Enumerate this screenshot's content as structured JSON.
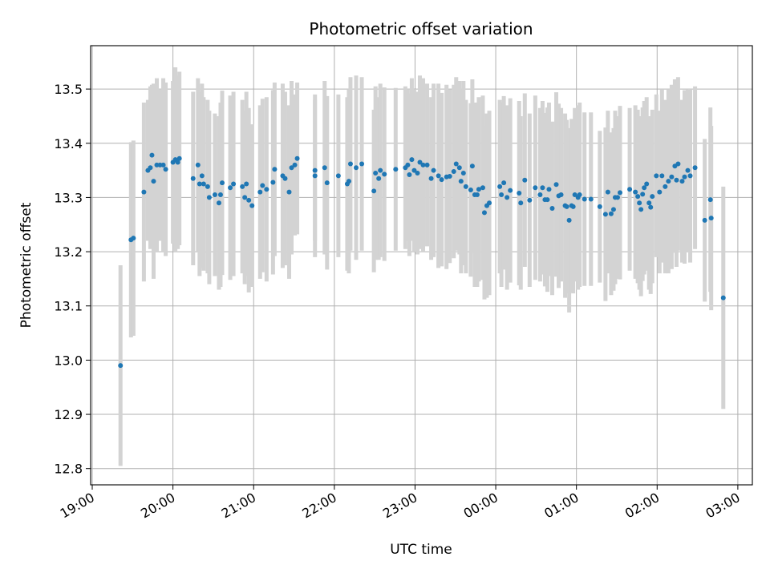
{
  "chart_data": {
    "type": "scatter",
    "title": "Photometric offset variation",
    "xlabel": "UTC time",
    "ylabel": "Photometric offset",
    "x_axis": "time (hours since 19:00 UTC reference; ticks wrap past midnight)",
    "xlim_hours": [
      -0.02,
      8.18
    ],
    "ylim": [
      12.77,
      13.58
    ],
    "x_ticks": [
      {
        "h": 0,
        "label": "19:00"
      },
      {
        "h": 1,
        "label": "20:00"
      },
      {
        "h": 2,
        "label": "21:00"
      },
      {
        "h": 3,
        "label": "22:00"
      },
      {
        "h": 4,
        "label": "23:00"
      },
      {
        "h": 5,
        "label": "00:00"
      },
      {
        "h": 6,
        "label": "01:00"
      },
      {
        "h": 7,
        "label": "02:00"
      },
      {
        "h": 8,
        "label": "03:00"
      }
    ],
    "y_ticks": [
      {
        "v": 12.8,
        "label": "12.8"
      },
      {
        "v": 12.9,
        "label": "12.9"
      },
      {
        "v": 13.0,
        "label": "13.0"
      },
      {
        "v": 13.1,
        "label": "13.1"
      },
      {
        "v": 13.2,
        "label": "13.2"
      },
      {
        "v": 13.3,
        "label": "13.3"
      },
      {
        "v": 13.4,
        "label": "13.4"
      },
      {
        "v": 13.5,
        "label": "13.5"
      }
    ],
    "grid": true,
    "marker_color": "#1f77b4",
    "errorbar_color": "#d3d3d3",
    "points": [
      [
        0.35,
        12.99,
        0.185
      ],
      [
        0.48,
        13.222,
        0.18
      ],
      [
        0.51,
        13.225,
        0.18
      ],
      [
        0.64,
        13.31,
        0.165
      ],
      [
        0.69,
        13.35,
        0.13
      ],
      [
        0.72,
        13.355,
        0.15
      ],
      [
        0.74,
        13.378,
        0.13
      ],
      [
        0.76,
        13.33,
        0.18
      ],
      [
        0.8,
        13.36,
        0.16
      ],
      [
        0.84,
        13.36,
        0.14
      ],
      [
        0.88,
        13.36,
        0.16
      ],
      [
        0.91,
        13.352,
        0.16
      ],
      [
        1.0,
        13.365,
        0.15
      ],
      [
        1.03,
        13.37,
        0.17
      ],
      [
        1.06,
        13.365,
        0.16
      ],
      [
        1.08,
        13.372,
        0.16
      ],
      [
        1.25,
        13.335,
        0.16
      ],
      [
        1.31,
        13.36,
        0.16
      ],
      [
        1.33,
        13.325,
        0.17
      ],
      [
        1.36,
        13.34,
        0.17
      ],
      [
        1.38,
        13.325,
        0.16
      ],
      [
        1.43,
        13.32,
        0.16
      ],
      [
        1.45,
        13.3,
        0.16
      ],
      [
        1.52,
        13.305,
        0.15
      ],
      [
        1.57,
        13.29,
        0.16
      ],
      [
        1.59,
        13.305,
        0.17
      ],
      [
        1.61,
        13.327,
        0.17
      ],
      [
        1.71,
        13.318,
        0.17
      ],
      [
        1.75,
        13.325,
        0.17
      ],
      [
        1.86,
        13.32,
        0.16
      ],
      [
        1.89,
        13.3,
        0.16
      ],
      [
        1.91,
        13.325,
        0.17
      ],
      [
        1.94,
        13.295,
        0.17
      ],
      [
        1.98,
        13.285,
        0.15
      ],
      [
        2.08,
        13.31,
        0.16
      ],
      [
        2.11,
        13.322,
        0.16
      ],
      [
        2.16,
        13.315,
        0.17
      ],
      [
        2.24,
        13.328,
        0.17
      ],
      [
        2.26,
        13.352,
        0.16
      ],
      [
        2.36,
        13.34,
        0.17
      ],
      [
        2.39,
        13.335,
        0.16
      ],
      [
        2.44,
        13.31,
        0.16
      ],
      [
        2.47,
        13.355,
        0.16
      ],
      [
        2.51,
        13.36,
        0.13
      ],
      [
        2.54,
        13.372,
        0.14
      ],
      [
        2.76,
        13.35,
        0.13
      ],
      [
        2.76,
        13.34,
        0.15
      ],
      [
        2.88,
        13.355,
        0.16
      ],
      [
        2.91,
        13.327,
        0.16
      ],
      [
        3.05,
        13.34,
        0.15
      ],
      [
        3.16,
        13.325,
        0.16
      ],
      [
        3.18,
        13.33,
        0.17
      ],
      [
        3.2,
        13.362,
        0.16
      ],
      [
        3.27,
        13.355,
        0.17
      ],
      [
        3.34,
        13.362,
        0.16
      ],
      [
        3.49,
        13.312,
        0.15
      ],
      [
        3.51,
        13.345,
        0.16
      ],
      [
        3.55,
        13.335,
        0.15
      ],
      [
        3.57,
        13.35,
        0.16
      ],
      [
        3.62,
        13.343,
        0.16
      ],
      [
        3.76,
        13.352,
        0.15
      ],
      [
        3.88,
        13.355,
        0.15
      ],
      [
        3.91,
        13.36,
        0.14
      ],
      [
        3.93,
        13.342,
        0.15
      ],
      [
        3.96,
        13.37,
        0.15
      ],
      [
        3.99,
        13.35,
        0.15
      ],
      [
        4.03,
        13.345,
        0.15
      ],
      [
        4.06,
        13.365,
        0.16
      ],
      [
        4.1,
        13.36,
        0.16
      ],
      [
        4.15,
        13.36,
        0.15
      ],
      [
        4.2,
        13.335,
        0.15
      ],
      [
        4.23,
        13.35,
        0.16
      ],
      [
        4.29,
        13.34,
        0.17
      ],
      [
        4.33,
        13.333,
        0.16
      ],
      [
        4.39,
        13.338,
        0.17
      ],
      [
        4.43,
        13.339,
        0.16
      ],
      [
        4.48,
        13.348,
        0.16
      ],
      [
        4.51,
        13.362,
        0.16
      ],
      [
        4.55,
        13.355,
        0.16
      ],
      [
        4.57,
        13.33,
        0.17
      ],
      [
        4.6,
        13.345,
        0.17
      ],
      [
        4.63,
        13.32,
        0.16
      ],
      [
        4.69,
        13.314,
        0.16
      ],
      [
        4.71,
        13.358,
        0.16
      ],
      [
        4.74,
        13.305,
        0.17
      ],
      [
        4.77,
        13.305,
        0.17
      ],
      [
        4.79,
        13.315,
        0.17
      ],
      [
        4.84,
        13.318,
        0.17
      ],
      [
        4.86,
        13.272,
        0.16
      ],
      [
        4.89,
        13.285,
        0.17
      ],
      [
        4.92,
        13.29,
        0.17
      ],
      [
        5.05,
        13.32,
        0.16
      ],
      [
        5.07,
        13.305,
        0.17
      ],
      [
        5.1,
        13.327,
        0.16
      ],
      [
        5.14,
        13.3,
        0.17
      ],
      [
        5.18,
        13.313,
        0.17
      ],
      [
        5.29,
        13.308,
        0.17
      ],
      [
        5.31,
        13.29,
        0.16
      ],
      [
        5.36,
        13.332,
        0.16
      ],
      [
        5.42,
        13.295,
        0.16
      ],
      [
        5.49,
        13.318,
        0.17
      ],
      [
        5.55,
        13.305,
        0.16
      ],
      [
        5.58,
        13.318,
        0.16
      ],
      [
        5.61,
        13.296,
        0.16
      ],
      [
        5.64,
        13.296,
        0.17
      ],
      [
        5.66,
        13.315,
        0.16
      ],
      [
        5.7,
        13.28,
        0.16
      ],
      [
        5.75,
        13.324,
        0.17
      ],
      [
        5.78,
        13.303,
        0.17
      ],
      [
        5.81,
        13.305,
        0.16
      ],
      [
        5.86,
        13.285,
        0.17
      ],
      [
        5.88,
        13.283,
        0.16
      ],
      [
        5.91,
        13.258,
        0.17
      ],
      [
        5.94,
        13.285,
        0.16
      ],
      [
        5.96,
        13.283,
        0.16
      ],
      [
        5.98,
        13.305,
        0.16
      ],
      [
        6.02,
        13.3,
        0.17
      ],
      [
        6.04,
        13.305,
        0.17
      ],
      [
        6.1,
        13.297,
        0.16
      ],
      [
        6.18,
        13.297,
        0.16
      ],
      [
        6.29,
        13.283,
        0.14
      ],
      [
        6.36,
        13.269,
        0.16
      ],
      [
        6.39,
        13.31,
        0.15
      ],
      [
        6.43,
        13.27,
        0.15
      ],
      [
        6.46,
        13.278,
        0.15
      ],
      [
        6.48,
        13.3,
        0.16
      ],
      [
        6.51,
        13.3,
        0.15
      ],
      [
        6.54,
        13.309,
        0.16
      ],
      [
        6.66,
        13.315,
        0.15
      ],
      [
        6.73,
        13.31,
        0.16
      ],
      [
        6.76,
        13.302,
        0.16
      ],
      [
        6.78,
        13.29,
        0.16
      ],
      [
        6.8,
        13.278,
        0.16
      ],
      [
        6.82,
        13.306,
        0.16
      ],
      [
        6.84,
        13.318,
        0.16
      ],
      [
        6.87,
        13.325,
        0.16
      ],
      [
        6.9,
        13.29,
        0.16
      ],
      [
        6.92,
        13.282,
        0.16
      ],
      [
        6.94,
        13.302,
        0.16
      ],
      [
        6.99,
        13.34,
        0.15
      ],
      [
        7.03,
        13.31,
        0.15
      ],
      [
        7.06,
        13.34,
        0.16
      ],
      [
        7.1,
        13.32,
        0.16
      ],
      [
        7.14,
        13.33,
        0.17
      ],
      [
        7.18,
        13.338,
        0.17
      ],
      [
        7.22,
        13.358,
        0.16
      ],
      [
        7.24,
        13.332,
        0.16
      ],
      [
        7.26,
        13.362,
        0.16
      ],
      [
        7.31,
        13.33,
        0.15
      ],
      [
        7.34,
        13.338,
        0.16
      ],
      [
        7.38,
        13.35,
        0.15
      ],
      [
        7.41,
        13.34,
        0.16
      ],
      [
        7.47,
        13.355,
        0.15
      ],
      [
        7.59,
        13.258,
        0.15
      ],
      [
        7.66,
        13.296,
        0.17
      ],
      [
        7.67,
        13.262,
        0.17
      ],
      [
        7.82,
        13.115,
        0.205
      ]
    ]
  }
}
